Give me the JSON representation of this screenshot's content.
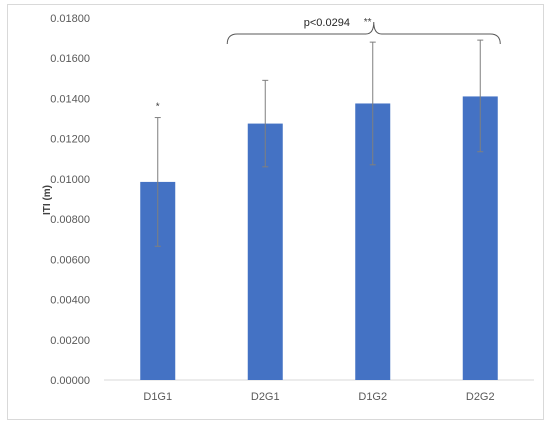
{
  "chart_data": {
    "type": "bar",
    "categories": [
      "D1G1",
      "D2G1",
      "D1G2",
      "D2G2"
    ],
    "values": [
      0.00985,
      0.01275,
      0.01375,
      0.0141
    ],
    "error_low": [
      0.00665,
      0.0106,
      0.0107,
      0.01135
    ],
    "error_high": [
      0.01305,
      0.0149,
      0.0168,
      0.0169
    ],
    "markers": [
      "*",
      "",
      "",
      ""
    ],
    "ylabel": "ITI (m)",
    "ylim": [
      0,
      0.018
    ],
    "yticks": [
      "0.00000",
      "0.00200",
      "0.00400",
      "0.00600",
      "0.00800",
      "0.01000",
      "0.01200",
      "0.01400",
      "0.01600",
      "0.01800"
    ],
    "annotation": {
      "text": "p<0.0294",
      "marker": "**",
      "span": [
        "D2G1",
        "D2G2"
      ]
    },
    "bar_color": "#4472C4",
    "grid": false,
    "legend": "none"
  }
}
